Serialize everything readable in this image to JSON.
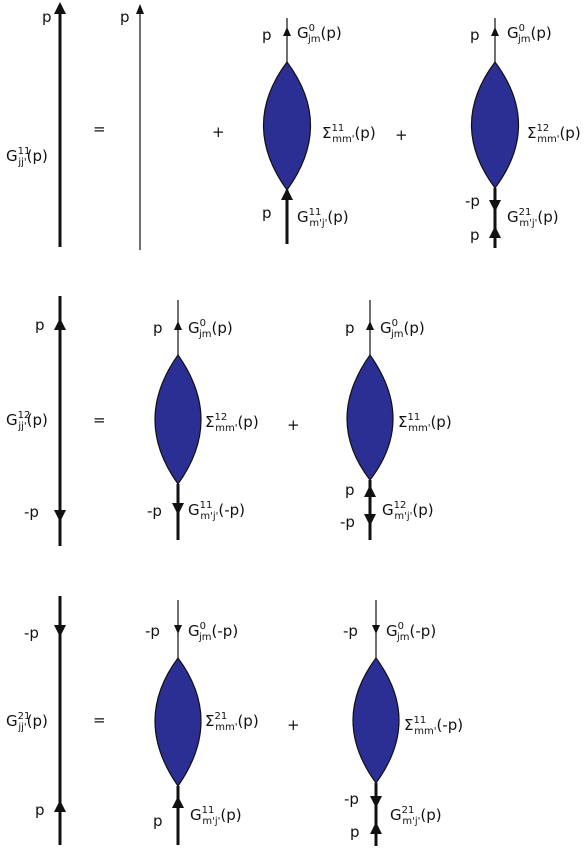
{
  "colors": {
    "blob_fill": "#2b2f94",
    "line": "#111111",
    "background": "#ffffff"
  },
  "labels": {
    "p": "p",
    "minus_p": "-p",
    "equals": "=",
    "plus": "+",
    "G": "G",
    "Sigma": "Σ",
    "arg_p": "(p)",
    "arg_minus_p": "(-p)",
    "sup_0": "0",
    "sup_11": "11",
    "sup_12": "12",
    "sup_21": "21",
    "sub_jj": "jj'",
    "sub_jm": "jm",
    "sub_mm": "mm'",
    "sub_mj": "m'j'"
  }
}
